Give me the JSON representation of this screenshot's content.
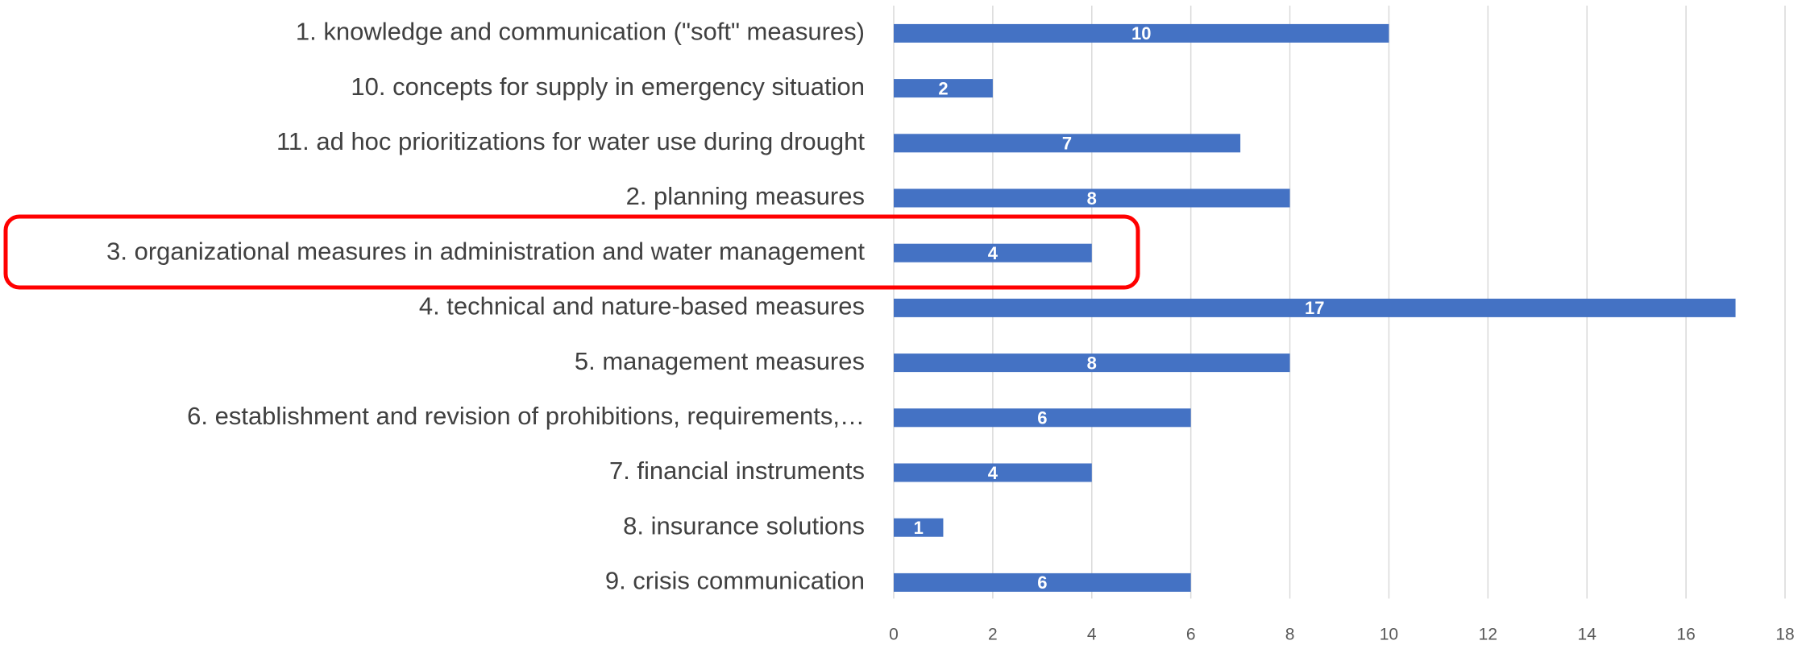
{
  "chart_data": {
    "type": "bar",
    "orientation": "horizontal",
    "categories": [
      "1. knowledge and communication (\"soft\" measures)",
      "10. concepts for supply in emergency situation",
      "11. ad hoc prioritizations for water use during drought",
      "2. planning measures",
      "3. organizational measures in administration and water management",
      "4. technical and nature-based measures",
      "5. management measures",
      "6. establishment and revision of prohibitions, requirements,…",
      "7. financial instruments",
      "8. insurance solutions",
      "9. crisis communication"
    ],
    "values": [
      10,
      2,
      7,
      8,
      4,
      17,
      8,
      6,
      4,
      1,
      6
    ],
    "color": "#4472c4",
    "xlim": [
      0,
      18
    ],
    "xticks": [
      0,
      2,
      4,
      6,
      8,
      10,
      12,
      14,
      16,
      18
    ],
    "grid": true
  }
}
